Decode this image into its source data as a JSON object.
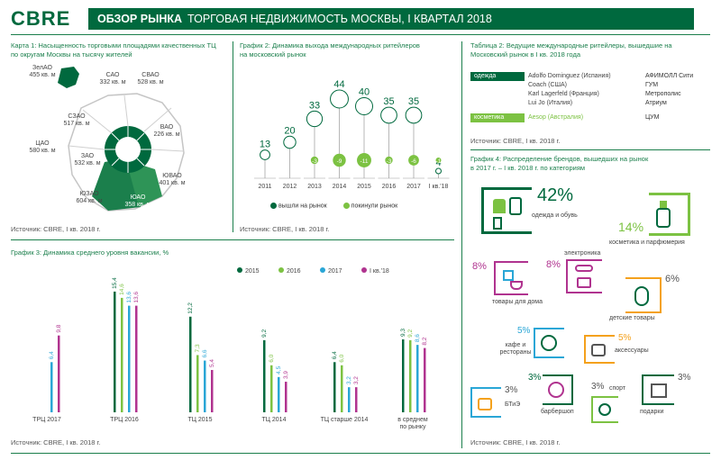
{
  "header": {
    "logo": "CBRE",
    "title_bold": "ОБЗОР РЫНКА",
    "title_rest": "ТОРГОВАЯ НЕДВИЖИМОСТЬ МОСКВЫ, I КВАРТАЛ 2018"
  },
  "map": {
    "title_line1": "Карта 1: Насыщенность торговыми площадями качественных ТЦ",
    "title_line2": "по округам Москвы на тысячу жителей",
    "source": "Источник: CBRE, I кв. 2018 г.",
    "districts": [
      {
        "name": "ЗелАО",
        "value": "455 кв. м"
      },
      {
        "name": "САО",
        "value": "332 кв. м"
      },
      {
        "name": "СВАО",
        "value": "528 кв. м"
      },
      {
        "name": "СЗАО",
        "value": "517 кв. м"
      },
      {
        "name": "ВАО",
        "value": "226 кв. м"
      },
      {
        "name": "ЦАО",
        "value": "580 кв. м"
      },
      {
        "name": "ЗАО",
        "value": "532 кв. м"
      },
      {
        "name": "ЮВАО",
        "value": "401 кв. м"
      },
      {
        "name": "ЮЗАО",
        "value": "604 кв. м"
      },
      {
        "name": "ЮАО",
        "value": "358 кв. м"
      }
    ]
  },
  "graph2": {
    "title_line1": "График 2: Динамика выхода международных ритейлеров",
    "title_line2": "на московский рынок",
    "source": "Источник: CBRE, I кв. 2018 г.",
    "legend_in": "вышли на рынок",
    "legend_out": "покинули рынок"
  },
  "table2": {
    "title_line1": "Таблица 2: Ведущие международные ритейлеры, вышедшие на",
    "title_line2": "Московский рынок в I кв. 2018 года",
    "source": "Источник: CBRE, I кв. 2018 г.",
    "cat_clothes": "одежда",
    "cat_cosmetics": "косметика",
    "rows": [
      {
        "brand": "Adolfo Dominguez (Испания)",
        "mall": "АФИМОЛЛ Сити"
      },
      {
        "brand": "Coach (США)",
        "mall": "ГУМ"
      },
      {
        "brand": "Karl Lagerfeld (Франция)",
        "mall": "Метрополис"
      },
      {
        "brand": "Lui Jo (Италия)",
        "mall": "Атриум"
      },
      {
        "brand": "Aesop (Австралия)",
        "mall": "ЦУМ"
      }
    ]
  },
  "graph4": {
    "title_line1": "График 4: Распределение брендов, вышедших на рынок",
    "title_line2": "в 2017 г. – I кв. 2018 г. по категориям",
    "source": "Источник: CBRE, I кв. 2018 г.",
    "items": [
      {
        "pct": "42%",
        "label": "одежда и обувь"
      },
      {
        "pct": "14%",
        "label": "косметика и парфюмерия"
      },
      {
        "pct": "8%",
        "label": "товары для дома"
      },
      {
        "pct": "8%",
        "label": "электроника"
      },
      {
        "pct": "6%",
        "label": "детские товары"
      },
      {
        "pct": "5%",
        "label": "кафе и рестораны"
      },
      {
        "pct": "5%",
        "label": "аксессуары"
      },
      {
        "pct": "3%",
        "label": "БТиЭ"
      },
      {
        "pct": "3%",
        "label": "барбершоп"
      },
      {
        "pct": "3%",
        "label": "спорт"
      },
      {
        "pct": "3%",
        "label": "подарки"
      }
    ]
  },
  "graph3": {
    "title": "График 3: Динамика среднего уровня вакансии, %",
    "source": "Источник: CBRE, I кв. 2018 г."
  },
  "chart_data": [
    {
      "type": "line",
      "title": "График 2: Динамика выхода международных ритейлеров на московский рынок",
      "categories": [
        "2011",
        "2012",
        "2013",
        "2014",
        "2015",
        "2016",
        "2017",
        "I кв.'18"
      ],
      "series": [
        {
          "name": "вышли на рынок",
          "values": [
            13,
            20,
            33,
            44,
            40,
            35,
            35,
            4
          ],
          "color": "#00693e"
        },
        {
          "name": "покинули рынок",
          "values": [
            null,
            null,
            -3,
            -9,
            -11,
            -3,
            -6,
            -1
          ],
          "color": "#7cc242"
        }
      ],
      "labels_in": [
        "13",
        "20",
        "33",
        "44",
        "40",
        "35",
        "35",
        "4"
      ],
      "labels_out": [
        "",
        "",
        "-3",
        "-9",
        "-11",
        "-3",
        "-6",
        "-1"
      ]
    },
    {
      "type": "bar",
      "title": "График 3: Динамика среднего уровня вакансии, %",
      "categories": [
        "ТРЦ 2017",
        "ТРЦ 2016",
        "ТЦ 2015",
        "ТЦ 2014",
        "ТЦ старше 2014",
        "в среднем по рынку"
      ],
      "series": [
        {
          "name": "2015",
          "color": "#00693e",
          "values": [
            null,
            15.4,
            12.2,
            9.2,
            6.4,
            9.3
          ]
        },
        {
          "name": "2016",
          "color": "#7cc242",
          "values": [
            null,
            14.6,
            7.3,
            6.0,
            6.0,
            9.2
          ]
        },
        {
          "name": "2017",
          "color": "#29a6d6",
          "values": [
            6.4,
            13.6,
            6.6,
            4.5,
            3.2,
            8.6
          ]
        },
        {
          "name": "I кв.'18",
          "color": "#b0338f",
          "values": [
            9.8,
            13.6,
            5.4,
            3.9,
            3.2,
            8.2
          ]
        }
      ],
      "value_labels": [
        [
          "",
          "",
          "6,4",
          "9,8"
        ],
        [
          "15,4",
          "14,6",
          "13,6",
          "13,6"
        ],
        [
          "12,2",
          "7,3",
          "6,6",
          "5,4"
        ],
        [
          "9,2",
          "6,0",
          "4,5",
          "3,9"
        ],
        [
          "6,4",
          "6,0",
          "3,2",
          "3,2"
        ],
        [
          "9,3",
          "9,2",
          "8,6",
          "8,2"
        ]
      ],
      "ylim": [
        0,
        17
      ]
    }
  ]
}
